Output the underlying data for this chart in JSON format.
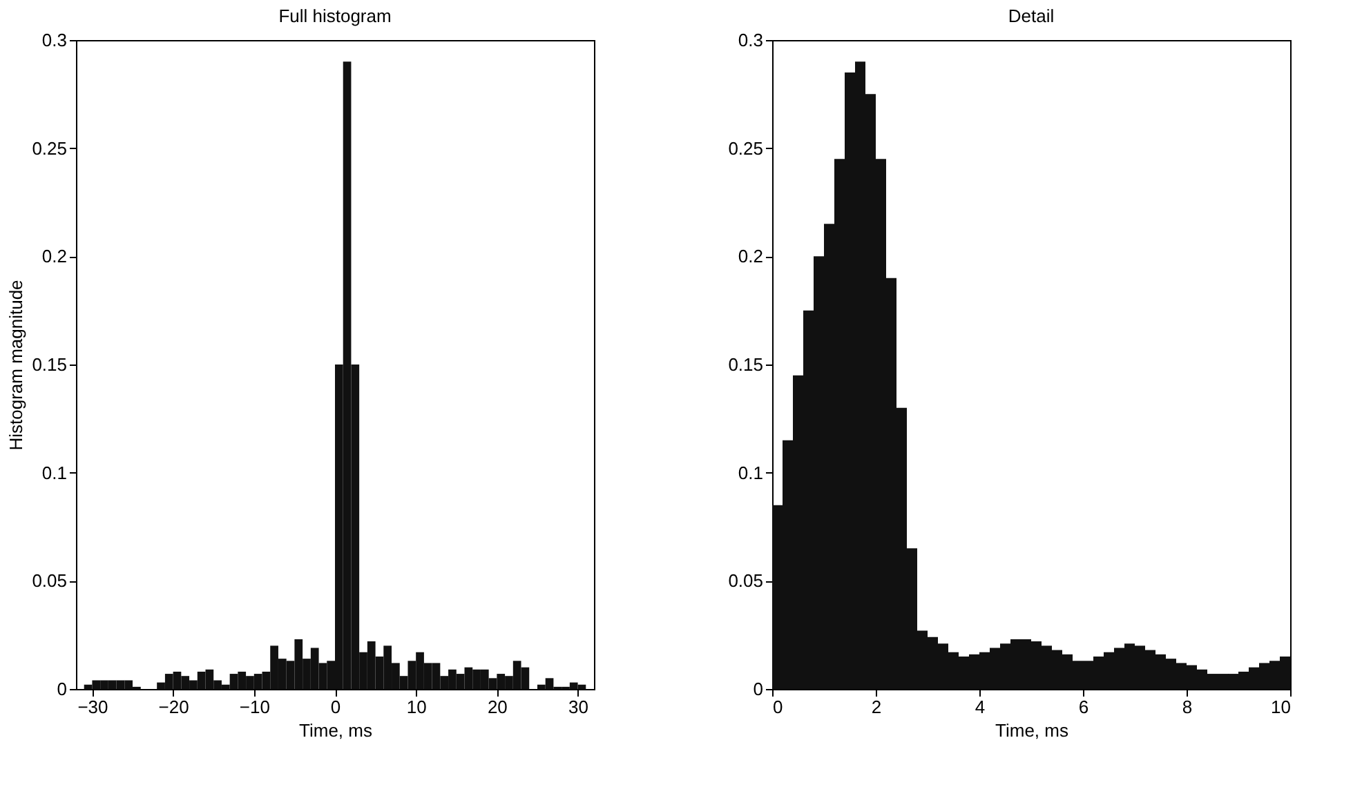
{
  "chart_data": [
    {
      "type": "histogram",
      "title": "Full histogram",
      "xlabel": "Time, ms",
      "ylabel": "Histogram magnitude",
      "color": "#111111",
      "bins": [
        -32,
        -31,
        -30,
        -29,
        -28,
        -27,
        -26,
        -25,
        -24,
        -23,
        -22,
        -21,
        -20,
        -19,
        -18,
        -17,
        -16,
        -15,
        -14,
        -13,
        -12,
        -11,
        -10,
        -9,
        -8,
        -7,
        -6,
        -5,
        -4,
        -3,
        -2,
        -1,
        0,
        1,
        2,
        3,
        4,
        5,
        6,
        7,
        8,
        9,
        10,
        11,
        12,
        13,
        14,
        15,
        16,
        17,
        18,
        19,
        20,
        21,
        22,
        23,
        24,
        25,
        26,
        27,
        28,
        29,
        30,
        31,
        32
      ],
      "values": [
        0,
        0.002,
        0.004,
        0.004,
        0.004,
        0.004,
        0.004,
        0.001,
        0,
        0,
        0.003,
        0.007,
        0.008,
        0.006,
        0.004,
        0.008,
        0.009,
        0.004,
        0.002,
        0.007,
        0.008,
        0.006,
        0.007,
        0.008,
        0.02,
        0.014,
        0.013,
        0.023,
        0.014,
        0.019,
        0.012,
        0.013,
        0.15,
        0.29,
        0.15,
        0.017,
        0.022,
        0.015,
        0.02,
        0.012,
        0.006,
        0.013,
        0.017,
        0.012,
        0.012,
        0.006,
        0.009,
        0.007,
        0.01,
        0.009,
        0.009,
        0.005,
        0.007,
        0.006,
        0.013,
        0.01,
        0,
        0.002,
        0.005,
        0.001,
        0.001,
        0.003,
        0.002,
        0
      ],
      "xlim": [
        -32,
        32
      ],
      "xticks": [
        -30,
        -20,
        -10,
        0,
        10,
        20,
        30
      ],
      "ylim": [
        0,
        0.3
      ],
      "yticks": [
        0,
        0.05,
        0.1,
        0.15,
        0.2,
        0.25,
        0.3
      ]
    },
    {
      "type": "histogram",
      "title": "Detail",
      "xlabel": "Time, ms",
      "color": "#111111",
      "bins": [
        0,
        0.2,
        0.4,
        0.6,
        0.8,
        1,
        1.2,
        1.4,
        1.6,
        1.8,
        2,
        2.2,
        2.4,
        2.6,
        2.8,
        3,
        3.2,
        3.4,
        3.6,
        3.8,
        4,
        4.2,
        4.4,
        4.6,
        4.8,
        5,
        5.2,
        5.4,
        5.6,
        5.8,
        6,
        6.2,
        6.4,
        6.6,
        6.8,
        7,
        7.2,
        7.4,
        7.6,
        7.8,
        8,
        8.2,
        8.4,
        8.6,
        8.8,
        9,
        9.2,
        9.4,
        9.6,
        9.8,
        10
      ],
      "values": [
        0.085,
        0.115,
        0.145,
        0.175,
        0.2,
        0.215,
        0.245,
        0.285,
        0.29,
        0.275,
        0.245,
        0.19,
        0.13,
        0.065,
        0.027,
        0.024,
        0.021,
        0.017,
        0.015,
        0.016,
        0.017,
        0.019,
        0.021,
        0.023,
        0.023,
        0.022,
        0.02,
        0.018,
        0.016,
        0.013,
        0.013,
        0.015,
        0.017,
        0.019,
        0.021,
        0.02,
        0.018,
        0.016,
        0.014,
        0.012,
        0.011,
        0.009,
        0.007,
        0.007,
        0.007,
        0.008,
        0.01,
        0.012,
        0.013,
        0.015
      ],
      "xlim": [
        0,
        10
      ],
      "xticks": [
        0,
        2,
        4,
        6,
        8,
        10
      ],
      "ylim": [
        0,
        0.3
      ],
      "yticks": [
        0,
        0.05,
        0.1,
        0.15,
        0.2,
        0.25,
        0.3
      ]
    }
  ]
}
